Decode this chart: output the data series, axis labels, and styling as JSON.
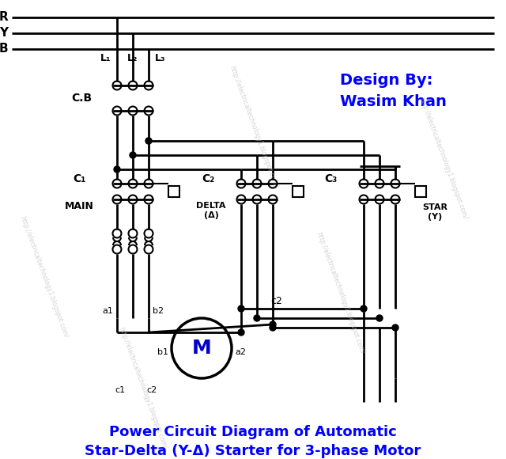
{
  "bg_color": "#ffffff",
  "line_color": "#000000",
  "title_color": "#0000FF",
  "design_color": "#0000FF",
  "title_text": "Power Circuit Diagram of Automatic\nStar-Delta (Y-Δ) Starter for 3-phase Motor",
  "design_text": "Design By:\nWasim Khan",
  "phase_labels": [
    "R",
    "Y",
    "B"
  ],
  "supply_labels": [
    "L₁",
    "L₂",
    "L₃"
  ],
  "cb_label": "C.B",
  "c1_label": "C₁",
  "c2_label": "C₂",
  "c3_label": "C₃",
  "main_label": "MAIN",
  "delta_label": "DELTA\n(Δ)",
  "star_label": "STAR\n(Y)",
  "motor_label": "M",
  "c2_box_label": "c2",
  "watermark": "http://electricaltechnology1.blogspot.com/",
  "lw": 2.0,
  "lw_thin": 1.5,
  "contact_r": 5.5,
  "dot_r": 4.0,
  "motor_r": 38
}
